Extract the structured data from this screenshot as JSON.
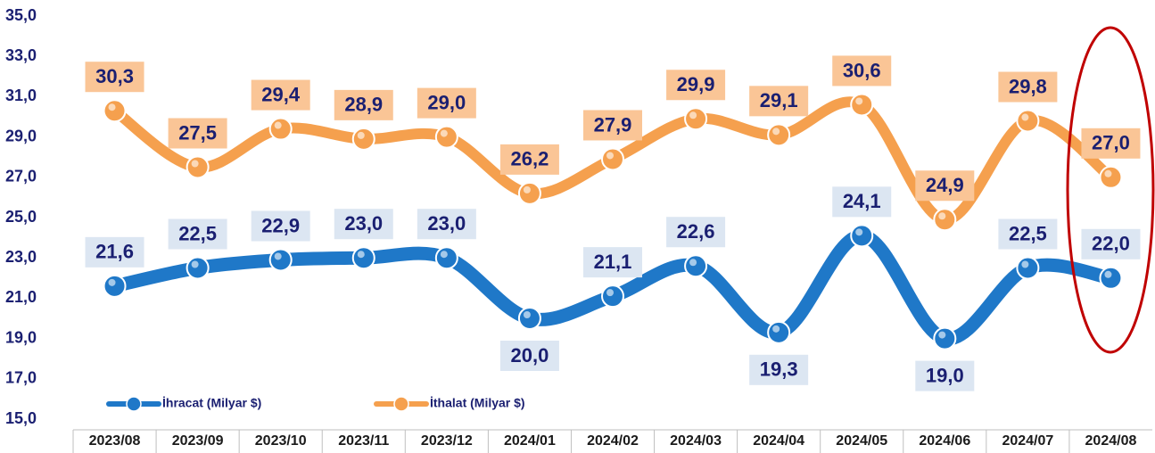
{
  "chart_data": {
    "type": "line",
    "categories": [
      "2023/08",
      "2023/09",
      "2023/10",
      "2023/11",
      "2023/12",
      "2024/01",
      "2024/02",
      "2024/03",
      "2024/04",
      "2024/05",
      "2024/06",
      "2024/07",
      "2024/08"
    ],
    "series": [
      {
        "name": "İhracat (Milyar $)",
        "color": "#1f78c8",
        "values": [
          21.6,
          22.5,
          22.9,
          23.0,
          23.0,
          20.0,
          21.1,
          22.6,
          19.3,
          24.1,
          19.0,
          22.5,
          22.0
        ],
        "value_labels": [
          "21,6",
          "22,5",
          "22,9",
          "23,0",
          "23,0",
          "20,0",
          "21,1",
          "22,6",
          "19,3",
          "24,1",
          "19,0",
          "22,5",
          "22,0"
        ]
      },
      {
        "name": "İthalat (Milyar $)",
        "color": "#f5a04e",
        "values": [
          30.3,
          27.5,
          29.4,
          28.9,
          29.0,
          26.2,
          27.9,
          29.9,
          29.1,
          30.6,
          24.9,
          29.8,
          27.0
        ],
        "value_labels": [
          "30,3",
          "27,5",
          "29,4",
          "28,9",
          "29,0",
          "26,2",
          "27,9",
          "29,9",
          "29,1",
          "30,6",
          "24,9",
          "29,8",
          "27,0"
        ]
      }
    ],
    "ylim": [
      15,
      35
    ],
    "yticks": [
      {
        "value": 15,
        "label": "15,0"
      },
      {
        "value": 17,
        "label": "17,0"
      },
      {
        "value": 19,
        "label": "19,0"
      },
      {
        "value": 21,
        "label": "21,0"
      },
      {
        "value": 23,
        "label": "23,0"
      },
      {
        "value": 25,
        "label": "25,0"
      },
      {
        "value": 27,
        "label": "27,0"
      },
      {
        "value": 29,
        "label": "29,0"
      },
      {
        "value": 31,
        "label": "31,0"
      },
      {
        "value": 33,
        "label": "33,0"
      },
      {
        "value": 35,
        "label": "35,0"
      }
    ],
    "grid": false,
    "legend": "bottom-left"
  }
}
